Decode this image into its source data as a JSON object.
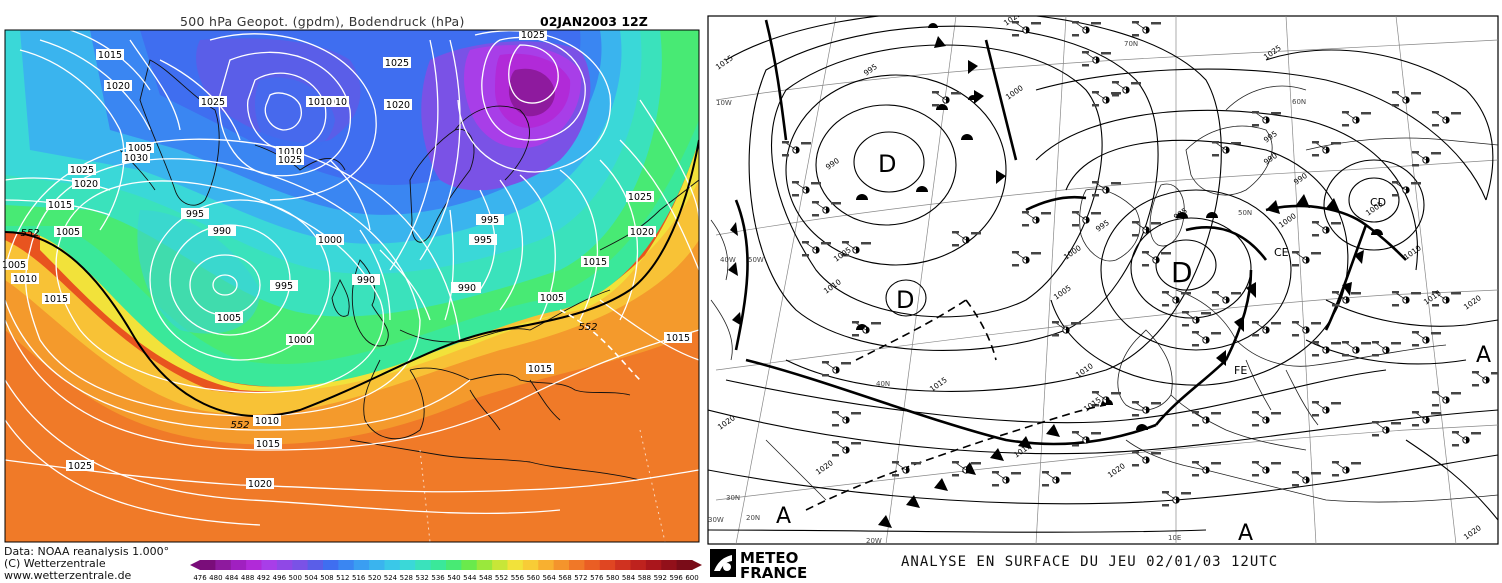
{
  "left_panel": {
    "title": "500 hPa Geopot. (gpdm), Bodendruck (hPa)",
    "date": "02JAN2003 12Z",
    "credits": [
      "Data: NOAA reanalysis 1.000°",
      "(C) Wetterzentrale",
      "www.wetterzentrale.de"
    ],
    "isobar_labels": [
      "1015",
      "1020",
      "1025",
      "1010",
      "1005",
      "1030",
      "1025",
      "1020",
      "1015",
      "1005",
      "1010",
      "1015",
      "1000",
      "995",
      "990",
      "995",
      "1005",
      "1000",
      "990",
      "995",
      "1000",
      "995",
      "990",
      "1010",
      "1015",
      "1020",
      "1025",
      "1025",
      "1020",
      "1010",
      "1025",
      "1025",
      "995",
      "1000",
      "1005",
      "1010",
      "1015",
      "1020",
      "1025",
      "1015",
      "1015",
      "1005",
      "1010",
      "1015",
      "1020"
    ],
    "geopotential_552_labels": [
      "552",
      "552",
      "552"
    ],
    "colorbar_ticks": [
      "476",
      "480",
      "484",
      "488",
      "492",
      "496",
      "500",
      "504",
      "508",
      "512",
      "516",
      "520",
      "524",
      "528",
      "532",
      "536",
      "540",
      "544",
      "548",
      "552",
      "556",
      "560",
      "564",
      "568",
      "572",
      "576",
      "580",
      "584",
      "588",
      "592",
      "596",
      "600"
    ],
    "colorbar_colors": [
      "#7a0d7a",
      "#8e1a9e",
      "#a020c0",
      "#b12ad8",
      "#a83ee8",
      "#9048e6",
      "#7a52e6",
      "#5a5ee8",
      "#3f6ef0",
      "#3a86f2",
      "#3a9ef2",
      "#3ab4ee",
      "#3ac8e8",
      "#3ad8d8",
      "#3ae2bc",
      "#3ae89a",
      "#48ea74",
      "#6aea4c",
      "#9ae83c",
      "#c8e638",
      "#f2e23a",
      "#f8cc36",
      "#f8b030",
      "#f4942c",
      "#f07828",
      "#ea5e24",
      "#e04622",
      "#d03220",
      "#be221e",
      "#aa161c",
      "#92101a",
      "#7a0c18"
    ]
  },
  "right_panel": {
    "title": "ANALYSE EN SURFACE DU JEU  02/01/03  12UTC",
    "brand_top": "METEO",
    "brand_bottom": "FRANCE",
    "pressure_centers": [
      "D",
      "D",
      "D",
      "A",
      "A",
      "A"
    ],
    "isobar_labels": [
      "995",
      "990",
      "1000",
      "1005",
      "1010",
      "1015",
      "1020",
      "1020",
      "1015",
      "990",
      "985",
      "995",
      "1000",
      "1005",
      "1010",
      "1015",
      "1020",
      "1025",
      "1025",
      "990",
      "995",
      "1000",
      "1005",
      "1010",
      "1015",
      "1020",
      "1020",
      "1015"
    ],
    "graticule_labels": [
      "70N",
      "60N",
      "50N",
      "40N",
      "30N",
      "20N",
      "10W",
      "10E",
      "20W",
      "30W",
      "40W",
      "50W"
    ],
    "center_tags": [
      "CD",
      "CE",
      "FE"
    ]
  }
}
